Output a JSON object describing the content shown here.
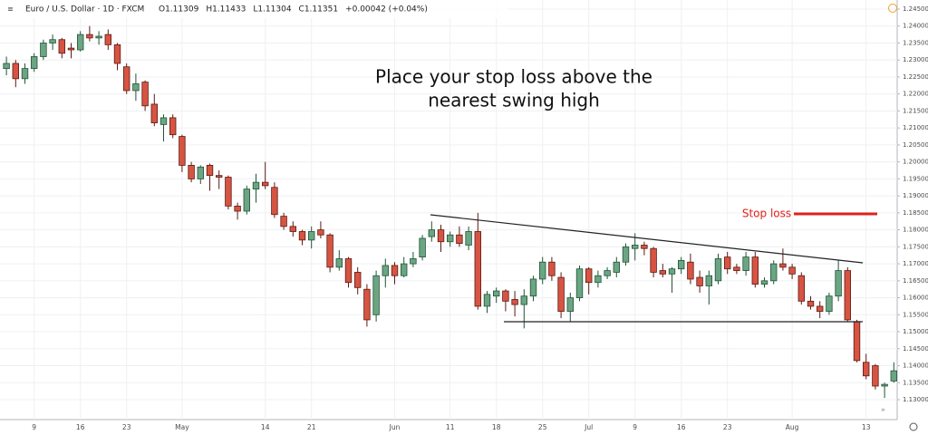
{
  "chart_data": {
    "type": "candlestick",
    "header": {
      "symbol": "Euro / U.S. Dollar · 1D · FXCM",
      "fields": [
        "O1.11309",
        "H1.11433",
        "L1.11304",
        "C1.11351",
        "+0.00042 (+0.04%)"
      ]
    },
    "annotation": [
      "Place your stop loss above the",
      "nearest swing high"
    ],
    "stop_label": "Stop loss",
    "up_color": "#6ba583",
    "down_color": "#d75442",
    "categories": [
      null,
      null,
      null,
      "9",
      null,
      null,
      null,
      null,
      "16",
      null,
      null,
      null,
      null,
      "23",
      null,
      null,
      null,
      null,
      null,
      "May",
      null,
      null,
      null,
      null,
      null,
      null,
      null,
      null,
      "14",
      null,
      null,
      null,
      null,
      "21",
      null,
      null,
      null,
      null,
      null,
      null,
      null,
      null,
      "Jun",
      null,
      null,
      null,
      null,
      null,
      "11",
      null,
      null,
      null,
      null,
      "18",
      null,
      null,
      null,
      null,
      "25",
      null,
      null,
      null,
      null,
      "Jul",
      null,
      null,
      null,
      null,
      "9",
      null,
      null,
      null,
      null,
      "16",
      null,
      null,
      null,
      null,
      "23",
      null,
      null,
      null,
      null,
      null,
      null,
      "Aug",
      null,
      null,
      null,
      null,
      null,
      null,
      null,
      "13",
      null,
      null,
      null
    ],
    "open": [
      1.2275,
      1.229,
      1.2245,
      1.2275,
      1.231,
      1.235,
      1.236,
      1.2335,
      1.233,
      1.2375,
      1.2365,
      1.2375,
      1.2345,
      1.228,
      1.221,
      1.2235,
      1.217,
      1.211,
      1.213,
      1.2075,
      1.199,
      1.195,
      1.199,
      1.196,
      1.1955,
      1.187,
      1.1855,
      1.192,
      1.194,
      1.1925,
      1.184,
      1.181,
      1.1795,
      1.177,
      1.18,
      1.1785,
      1.169,
      1.1715,
      1.1675,
      1.1625,
      1.155,
      1.1665,
      1.1695,
      1.1665,
      1.17,
      1.172,
      1.178,
      1.18,
      1.1765,
      1.1785,
      1.1755,
      1.1795,
      1.1575,
      1.1605,
      1.162,
      1.1595,
      1.158,
      1.1605,
      1.1655,
      1.1705,
      1.166,
      1.156,
      1.16,
      1.1685,
      1.1645,
      1.1665,
      1.1675,
      1.1705,
      1.1745,
      1.1755,
      1.1745,
      1.168,
      1.167,
      1.1685,
      1.1705,
      1.166,
      1.1635,
      1.165,
      1.172,
      1.169,
      1.168,
      1.172,
      1.164,
      1.165,
      1.17,
      1.169,
      1.1665,
      1.159,
      1.1575,
      1.156,
      1.1605,
      1.168,
      1.153,
      1.141,
      1.14,
      1.134,
      1.1355
    ],
    "high": [
      1.231,
      1.23,
      1.229,
      1.232,
      1.236,
      1.2375,
      1.2365,
      1.235,
      1.2385,
      1.24,
      1.2385,
      1.239,
      1.235,
      1.229,
      1.226,
      1.224,
      1.22,
      1.214,
      1.214,
      1.208,
      1.2,
      1.199,
      1.1995,
      1.1975,
      1.196,
      1.188,
      1.193,
      1.1965,
      1.2,
      1.194,
      1.185,
      1.1825,
      1.18,
      1.181,
      1.1825,
      1.179,
      1.174,
      1.172,
      1.169,
      1.164,
      1.168,
      1.1715,
      1.1705,
      1.172,
      1.1735,
      1.1785,
      1.1825,
      1.1815,
      1.1795,
      1.181,
      1.181,
      1.185,
      1.162,
      1.163,
      1.1625,
      1.162,
      1.1625,
      1.1665,
      1.172,
      1.172,
      1.1675,
      1.1615,
      1.1695,
      1.169,
      1.168,
      1.169,
      1.172,
      1.176,
      1.179,
      1.1765,
      1.175,
      1.17,
      1.169,
      1.172,
      1.173,
      1.168,
      1.168,
      1.173,
      1.1735,
      1.17,
      1.1735,
      1.1735,
      1.166,
      1.171,
      1.1745,
      1.17,
      1.1675,
      1.1605,
      1.159,
      1.1615,
      1.171,
      1.169,
      1.1535,
      1.1435,
      1.1405,
      1.135,
      1.141
    ],
    "low": [
      1.2255,
      1.222,
      1.223,
      1.2265,
      1.23,
      1.233,
      1.2305,
      1.2305,
      1.2325,
      1.2355,
      1.2345,
      1.233,
      1.227,
      1.22,
      1.218,
      1.215,
      1.2105,
      1.206,
      1.207,
      1.197,
      1.194,
      1.1935,
      1.1915,
      1.192,
      1.186,
      1.183,
      1.1845,
      1.188,
      1.192,
      1.1835,
      1.18,
      1.178,
      1.1755,
      1.1745,
      1.1775,
      1.1675,
      1.168,
      1.163,
      1.161,
      1.1515,
      1.153,
      1.163,
      1.164,
      1.166,
      1.169,
      1.171,
      1.1765,
      1.1735,
      1.175,
      1.175,
      1.174,
      1.1565,
      1.1555,
      1.1585,
      1.156,
      1.1545,
      1.151,
      1.159,
      1.164,
      1.165,
      1.154,
      1.153,
      1.159,
      1.161,
      1.163,
      1.1655,
      1.166,
      1.1695,
      1.171,
      1.1725,
      1.166,
      1.166,
      1.1615,
      1.167,
      1.164,
      1.1615,
      1.158,
      1.164,
      1.167,
      1.167,
      1.1665,
      1.163,
      1.163,
      1.164,
      1.168,
      1.1655,
      1.158,
      1.1565,
      1.154,
      1.155,
      1.159,
      1.153,
      1.141,
      1.136,
      1.133,
      1.1305,
      1.135
    ],
    "close": [
      1.229,
      1.2245,
      1.2275,
      1.231,
      1.235,
      1.236,
      1.232,
      1.233,
      1.2375,
      1.2365,
      1.237,
      1.2345,
      1.229,
      1.221,
      1.223,
      1.2165,
      1.2115,
      1.213,
      1.208,
      1.199,
      1.195,
      1.1985,
      1.196,
      1.1955,
      1.187,
      1.1855,
      1.192,
      1.194,
      1.193,
      1.1845,
      1.181,
      1.1795,
      1.177,
      1.1795,
      1.1785,
      1.169,
      1.1715,
      1.1645,
      1.163,
      1.1535,
      1.1665,
      1.1695,
      1.1665,
      1.17,
      1.1715,
      1.1775,
      1.18,
      1.1765,
      1.1785,
      1.176,
      1.1795,
      1.1575,
      1.161,
      1.162,
      1.159,
      1.158,
      1.1605,
      1.1655,
      1.1705,
      1.1665,
      1.156,
      1.16,
      1.1685,
      1.1645,
      1.1665,
      1.168,
      1.1705,
      1.175,
      1.1755,
      1.1745,
      1.1675,
      1.167,
      1.1685,
      1.171,
      1.1655,
      1.1635,
      1.1665,
      1.1715,
      1.1685,
      1.168,
      1.172,
      1.164,
      1.165,
      1.17,
      1.169,
      1.167,
      1.159,
      1.1575,
      1.156,
      1.1605,
      1.168,
      1.1535,
      1.1415,
      1.137,
      1.134,
      1.1345,
      1.1385
    ],
    "ylim": [
      1.12413,
      1.24767
    ],
    "yticks": [
      {
        "value": 1.245,
        "label": "1.24500"
      },
      {
        "value": 1.24,
        "label": "1.24000"
      },
      {
        "value": 1.235,
        "label": "1.23500"
      },
      {
        "value": 1.23,
        "label": "1.23000"
      },
      {
        "value": 1.225,
        "label": "1.22500"
      },
      {
        "value": 1.22,
        "label": "1.22000"
      },
      {
        "value": 1.215,
        "label": "1.21500"
      },
      {
        "value": 1.21,
        "label": "1.21000"
      },
      {
        "value": 1.205,
        "label": "1.20500"
      },
      {
        "value": 1.2,
        "label": "1.20000"
      },
      {
        "value": 1.195,
        "label": "1.19500"
      },
      {
        "value": 1.19,
        "label": "1.19000"
      },
      {
        "value": 1.185,
        "label": "1.18500"
      },
      {
        "value": 1.18,
        "label": "1.18000"
      },
      {
        "value": 1.175,
        "label": "1.17500"
      },
      {
        "value": 1.17,
        "label": "1.17000"
      },
      {
        "value": 1.165,
        "label": "1.16500"
      },
      {
        "value": 1.16,
        "label": "1.16000"
      },
      {
        "value": 1.155,
        "label": "1.15500"
      },
      {
        "value": 1.15,
        "label": "1.15000"
      },
      {
        "value": 1.145,
        "label": "1.14500"
      },
      {
        "value": 1.14,
        "label": "1.14000"
      },
      {
        "value": 1.135,
        "label": "1.13500"
      },
      {
        "value": 1.13,
        "label": "1.13000"
      }
    ],
    "grid": true
  }
}
